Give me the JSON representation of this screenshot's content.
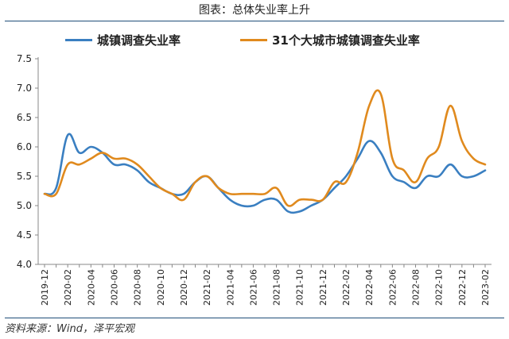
{
  "page": {
    "title": "图表：总体失业率上升",
    "source": "资料来源：Wind，泽平宏观"
  },
  "chart_data": {
    "type": "line",
    "title": "",
    "xlabel": "",
    "ylabel": "",
    "ylim": [
      4.0,
      7.5
    ],
    "yticks": [
      "4.0",
      "4.5",
      "5.0",
      "5.5",
      "6.0",
      "6.5",
      "7.0",
      "7.5"
    ],
    "x": [
      "2019-12",
      "2020-01",
      "2020-02",
      "2020-03",
      "2020-04",
      "2020-05",
      "2020-06",
      "2020-07",
      "2020-08",
      "2020-09",
      "2020-10",
      "2020-11",
      "2020-12",
      "2021-01",
      "2021-02",
      "2021-03",
      "2021-04",
      "2021-05",
      "2021-06",
      "2021-07",
      "2021-08",
      "2021-09",
      "2021-10",
      "2021-11",
      "2021-12",
      "2022-01",
      "2022-02",
      "2022-03",
      "2022-04",
      "2022-05",
      "2022-06",
      "2022-07",
      "2022-08",
      "2022-09",
      "2022-10",
      "2022-11",
      "2022-12",
      "2023-01",
      "2023-02"
    ],
    "xtick_labels": [
      "2019-12",
      "2020-02",
      "2020-04",
      "2020-06",
      "2020-08",
      "2020-10",
      "2020-12",
      "2021-02",
      "2021-04",
      "2021-06",
      "2021-08",
      "2021-10",
      "2021-12",
      "2022-02",
      "2022-04",
      "2022-06",
      "2022-08",
      "2022-10",
      "2022-12",
      "2023-02"
    ],
    "legend_position": "top",
    "grid": false,
    "series": [
      {
        "name": "城镇调查失业率",
        "color": "#3a7fc1",
        "values": [
          5.2,
          5.3,
          6.2,
          5.9,
          6.0,
          5.9,
          5.7,
          5.7,
          5.6,
          5.4,
          5.3,
          5.2,
          5.2,
          5.4,
          5.5,
          5.3,
          5.1,
          5.0,
          5.0,
          5.1,
          5.1,
          4.9,
          4.9,
          5.0,
          5.1,
          5.3,
          5.5,
          5.8,
          6.1,
          5.9,
          5.5,
          5.4,
          5.3,
          5.5,
          5.5,
          5.7,
          5.5,
          5.5,
          5.6
        ]
      },
      {
        "name": "31个大城市城镇调查失业率",
        "color": "#e08a1e",
        "values": [
          5.2,
          5.2,
          5.7,
          5.7,
          5.8,
          5.9,
          5.8,
          5.8,
          5.7,
          5.5,
          5.3,
          5.2,
          5.1,
          5.4,
          5.5,
          5.3,
          5.2,
          5.2,
          5.2,
          5.2,
          5.3,
          5.0,
          5.1,
          5.1,
          5.1,
          5.4,
          5.4,
          5.9,
          6.7,
          6.9,
          5.8,
          5.6,
          5.4,
          5.8,
          6.0,
          6.7,
          6.1,
          5.8,
          5.7
        ]
      }
    ]
  }
}
